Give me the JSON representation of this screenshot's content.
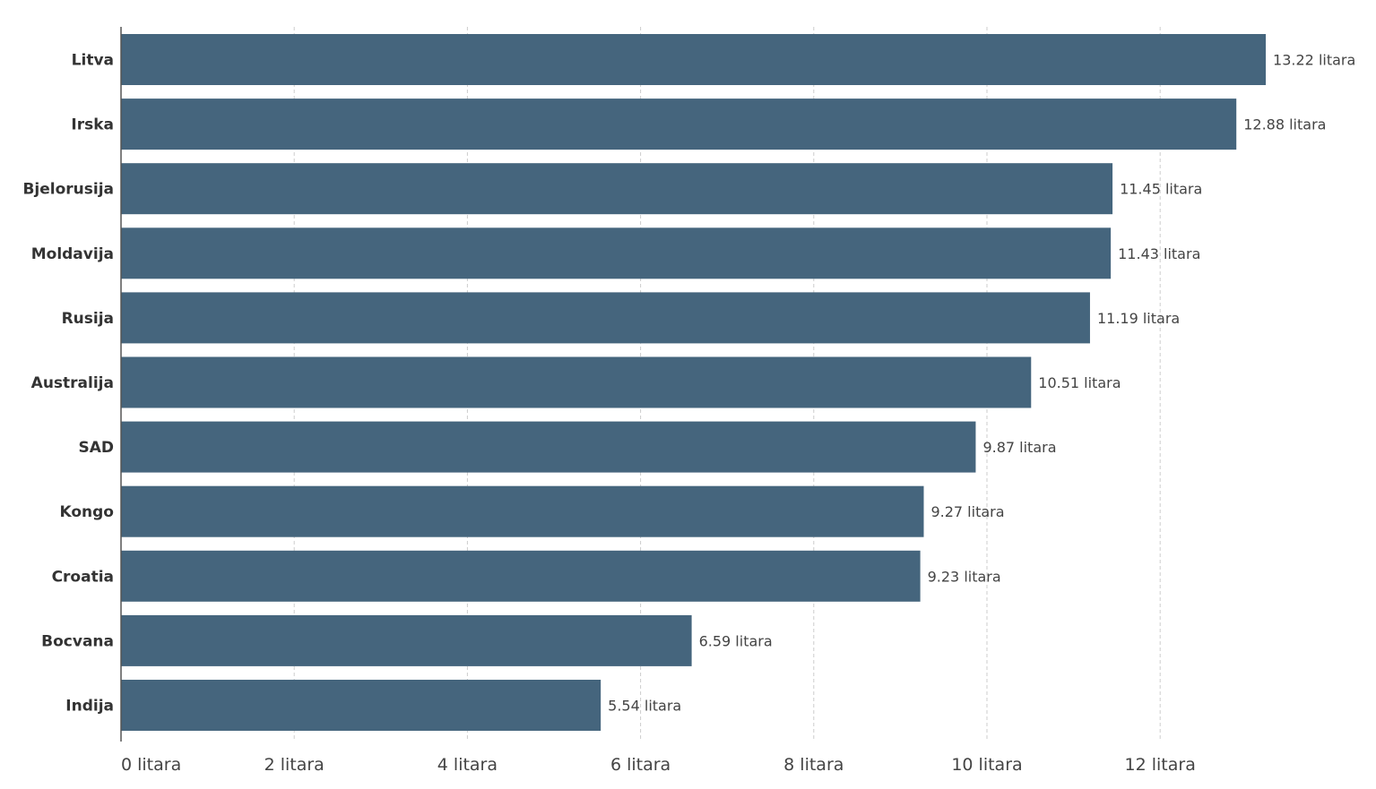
{
  "chart_data": {
    "type": "bar",
    "orientation": "horizontal",
    "categories": [
      "Litva",
      "Irska",
      "Bjelorusija",
      "Moldavija",
      "Rusija",
      "Australija",
      "SAD",
      "Kongo",
      "Croatia",
      "Bocvana",
      "Indija"
    ],
    "values": [
      13.22,
      12.88,
      11.45,
      11.43,
      11.19,
      10.51,
      9.87,
      9.27,
      9.23,
      6.59,
      5.54
    ],
    "value_labels": [
      "13.22 litara",
      "12.88 litara",
      "11.45 litara",
      "11.43 litara",
      "11.19 litara",
      "10.51 litara",
      "9.87 litara",
      "9.27 litara",
      "9.23 litara",
      "6.59 litara",
      "5.54 litara"
    ],
    "xticks": [
      0,
      2,
      4,
      6,
      8,
      10,
      12
    ],
    "xtick_labels": [
      "0 litara",
      "2 litara",
      "4 litara",
      "6 litara",
      "8 litara",
      "10 litara",
      "12 litara"
    ],
    "xlim": [
      0,
      14
    ],
    "title": "",
    "xlabel": "",
    "ylabel": "",
    "grid": true,
    "bar_color": "#45657d"
  }
}
